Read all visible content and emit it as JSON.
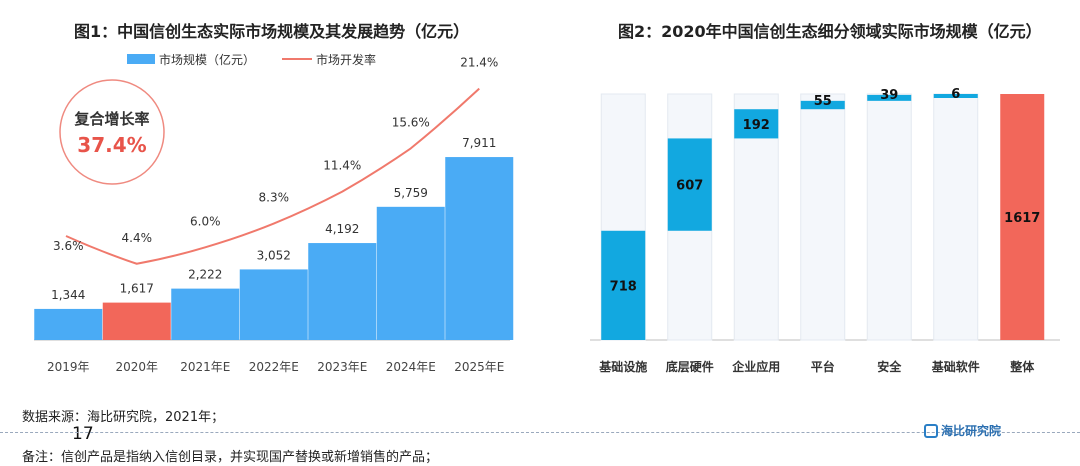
{
  "footnotes": {
    "source": "数据来源：海比研究院，2021年；",
    "remark": "备注：信创产品是指纳入信创目录，并实现国产替换或新增销售的产品；",
    "page_number": "17"
  },
  "logo_text": "海比研究院",
  "chart_data": [
    {
      "type": "bar",
      "title": "图1：中国信创生态实际市场规模及其发展趋势（亿元）",
      "categories": [
        "2019年",
        "2020年",
        "2021年E",
        "2022年E",
        "2023年E",
        "2024年E",
        "2025年E"
      ],
      "series": [
        {
          "name": "市场规模（亿元）",
          "type": "bar",
          "values": [
            1344,
            1617,
            2222,
            3052,
            4192,
            5759,
            7911
          ],
          "labels": [
            "1,344",
            "1,617",
            "2,222",
            "3,052",
            "4,192",
            "5,759",
            "7,911"
          ],
          "color": "#4aabf5",
          "highlight_index": 1,
          "highlight_color": "#f2675a"
        },
        {
          "name": "市场开发率",
          "type": "line",
          "values": [
            3.6,
            4.4,
            6.0,
            8.3,
            11.4,
            15.6,
            21.4
          ],
          "labels": [
            "3.6%",
            "4.4%",
            "6.0%",
            "8.3%",
            "11.4%",
            "15.6%",
            "21.4%"
          ],
          "color": "#f0796c"
        }
      ],
      "annotation": {
        "label": "复合增长率",
        "value": "37.4%",
        "color": "#e8544a"
      },
      "grid": false,
      "legend": "top-left"
    },
    {
      "type": "bar",
      "subtype": "waterfall",
      "title": "图2：2020年中国信创生态细分领域实际市场规模（亿元）",
      "categories": [
        "基础设施",
        "底层硬件",
        "企业应用",
        "平台",
        "安全",
        "基础软件",
        "整体"
      ],
      "values": [
        718,
        607,
        192,
        55,
        39,
        6,
        1617
      ],
      "labels": [
        "718",
        "607",
        "192",
        "55",
        "39",
        "6",
        "1617"
      ],
      "total_index": 6,
      "colors": {
        "segment": "#12a8e0",
        "total": "#f2675a"
      },
      "grid": false
    }
  ]
}
